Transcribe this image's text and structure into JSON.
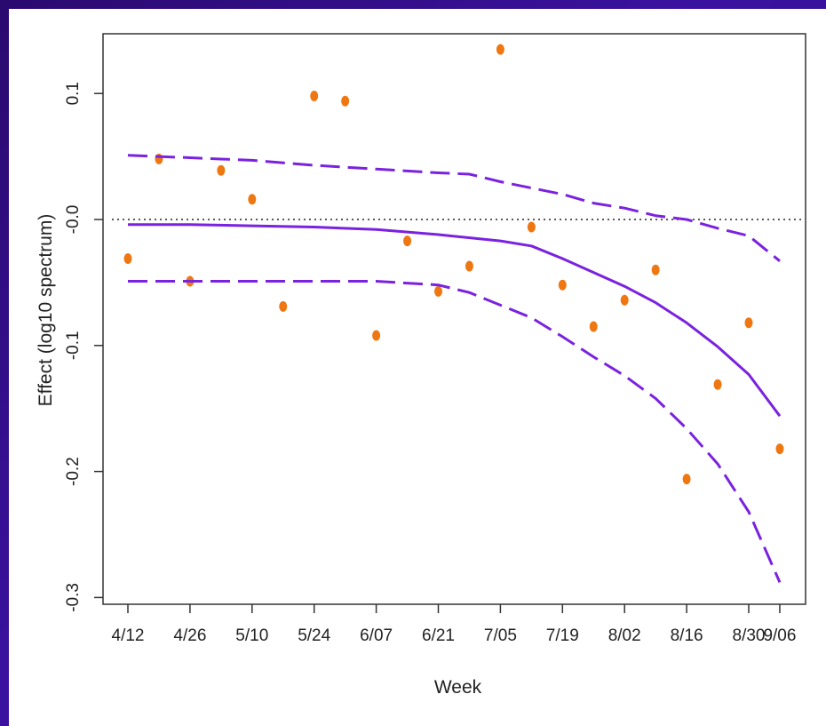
{
  "chart_data": {
    "type": "scatter",
    "title": "",
    "xlabel": "Week",
    "ylabel": "Effect (log10 spectrum)",
    "ylim": [
      -0.3,
      0.15
    ],
    "grid": false,
    "x_ticks": [
      {
        "value": 0,
        "label": "4/12"
      },
      {
        "value": 2,
        "label": "4/26"
      },
      {
        "value": 4,
        "label": "5/10"
      },
      {
        "value": 6,
        "label": "5/24"
      },
      {
        "value": 8,
        "label": "6/07"
      },
      {
        "value": 10,
        "label": "6/21"
      },
      {
        "value": 12,
        "label": "7/05"
      },
      {
        "value": 14,
        "label": "7/19"
      },
      {
        "value": 16,
        "label": "8/02"
      },
      {
        "value": 18,
        "label": "8/16"
      },
      {
        "value": 20,
        "label": "8/30"
      },
      {
        "value": 21,
        "label": "9/06"
      }
    ],
    "y_ticks": [
      {
        "value": 0.1,
        "label": "0.1"
      },
      {
        "value": 0.0,
        "label": "-0.0"
      },
      {
        "value": -0.1,
        "label": "-0.1"
      },
      {
        "value": -0.2,
        "label": "-0.2"
      },
      {
        "value": -0.3,
        "label": "-0.3"
      }
    ],
    "reference_line": {
      "y": 0.0,
      "style": "dotted"
    },
    "series": [
      {
        "kind": "points",
        "color": "#ee7711",
        "points": [
          [
            0,
            -0.031
          ],
          [
            1,
            0.048
          ],
          [
            2,
            -0.049
          ],
          [
            3,
            0.039
          ],
          [
            4,
            0.016
          ],
          [
            5,
            -0.069
          ],
          [
            6,
            0.098
          ],
          [
            7,
            0.094
          ],
          [
            8,
            -0.092
          ],
          [
            9,
            -0.017
          ],
          [
            10,
            -0.057
          ],
          [
            11,
            -0.037
          ],
          [
            12,
            0.135
          ],
          [
            13,
            -0.006
          ],
          [
            14,
            -0.052
          ],
          [
            15,
            -0.085
          ],
          [
            16,
            -0.064
          ],
          [
            17,
            -0.04
          ],
          [
            18,
            -0.206
          ],
          [
            19,
            -0.131
          ],
          [
            20,
            -0.082
          ],
          [
            21,
            -0.182
          ]
        ]
      },
      {
        "kind": "line",
        "style": "solid",
        "color": "#7a22e0",
        "points": [
          [
            0,
            -0.004
          ],
          [
            2,
            -0.004
          ],
          [
            4,
            -0.005
          ],
          [
            6,
            -0.006
          ],
          [
            8,
            -0.008
          ],
          [
            10,
            -0.012
          ],
          [
            12,
            -0.017
          ],
          [
            13,
            -0.021
          ],
          [
            14,
            -0.031
          ],
          [
            15,
            -0.042
          ],
          [
            16,
            -0.053
          ],
          [
            17,
            -0.066
          ],
          [
            18,
            -0.082
          ],
          [
            19,
            -0.101
          ],
          [
            20,
            -0.123
          ],
          [
            21,
            -0.156
          ]
        ]
      },
      {
        "kind": "line",
        "style": "dashed",
        "color": "#7a22e0",
        "points": [
          [
            0,
            0.051
          ],
          [
            2,
            0.049
          ],
          [
            4,
            0.047
          ],
          [
            6,
            0.043
          ],
          [
            8,
            0.04
          ],
          [
            10,
            0.037
          ],
          [
            11,
            0.036
          ],
          [
            12,
            0.03
          ],
          [
            14,
            0.02
          ],
          [
            15,
            0.013
          ],
          [
            16,
            0.009
          ],
          [
            17,
            0.003
          ],
          [
            18,
            0.0
          ],
          [
            19,
            -0.007
          ],
          [
            20,
            -0.013
          ],
          [
            21,
            -0.033
          ]
        ]
      },
      {
        "kind": "line",
        "style": "dashed",
        "color": "#7a22e0",
        "points": [
          [
            0,
            -0.049
          ],
          [
            2,
            -0.049
          ],
          [
            4,
            -0.049
          ],
          [
            6,
            -0.049
          ],
          [
            8,
            -0.049
          ],
          [
            10,
            -0.052
          ],
          [
            11,
            -0.058
          ],
          [
            12,
            -0.068
          ],
          [
            13,
            -0.078
          ],
          [
            14,
            -0.093
          ],
          [
            15,
            -0.109
          ],
          [
            16,
            -0.124
          ],
          [
            17,
            -0.142
          ],
          [
            18,
            -0.166
          ],
          [
            19,
            -0.194
          ],
          [
            20,
            -0.232
          ],
          [
            21,
            -0.288
          ]
        ]
      }
    ]
  }
}
